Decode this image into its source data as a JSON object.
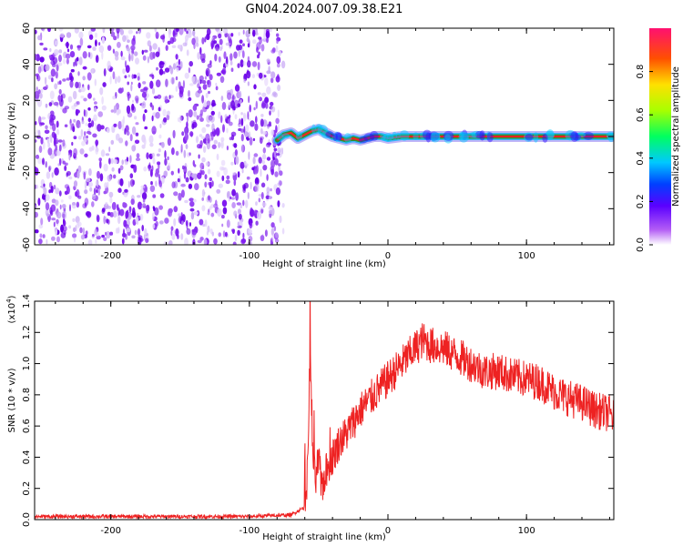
{
  "figure_title": "GN04.2024.007.09.38.E21",
  "colors": {
    "axis": "#000000",
    "background": "#ffffff",
    "snr_line": "#ee2222",
    "trace_center": "#ff2020",
    "trace_band": "#2f8f2f",
    "noise_dark": "#6a00e8",
    "noise_light": "#c8a8f5"
  },
  "chart_data": [
    {
      "type": "heatmap",
      "title": "GN04.2024.007.09.38.E21",
      "xlabel": "Height of straight line (km)",
      "ylabel": "Frequency (Hz)",
      "xlim": [
        -255,
        163
      ],
      "ylim": [
        -60,
        60
      ],
      "xticks": [
        -200,
        -100,
        0,
        100
      ],
      "xtick_labels": [
        "-200",
        "-100",
        "0",
        "100"
      ],
      "yticks": [
        -60,
        -40,
        -20,
        0,
        20,
        40,
        60
      ],
      "ytick_labels": [
        "-60",
        "-40",
        "-20",
        "0",
        "20",
        "40",
        "60"
      ],
      "noise_region_x": [
        -255,
        -78
      ],
      "trace": {
        "x": [
          -80,
          -75,
          -70,
          -65,
          -60,
          -55,
          -50,
          -45,
          -40,
          -35,
          -30,
          -25,
          -20,
          -15,
          -10,
          -5,
          0,
          10,
          20,
          40,
          60,
          80,
          100,
          120,
          140,
          163
        ],
        "y": [
          -2,
          1,
          2,
          -1,
          1,
          3,
          4,
          2,
          0,
          -1,
          -2,
          -1,
          -2,
          -1,
          0,
          0,
          -1,
          0,
          0,
          0,
          0,
          0,
          0,
          0,
          0,
          0
        ]
      },
      "colorbar": {
        "label": "Normalized spectral amplitude",
        "range": [
          0,
          1
        ],
        "ticks": [
          0.0,
          0.2,
          0.4,
          0.6,
          0.8
        ],
        "tick_labels": [
          "0.0",
          "0.2",
          "0.4",
          "0.6",
          "0.8"
        ],
        "colormap": "rainbow-white"
      }
    },
    {
      "type": "line",
      "xlabel": "Height of straight line (km)",
      "ylabel": "SNR (10 * v/v)",
      "y_scale_label": "(x10",
      "y_scale_exponent": "4",
      "y_scale_close": ")",
      "xlim": [
        -255,
        163
      ],
      "ylim": [
        0,
        1.4
      ],
      "xticks": [
        -200,
        -100,
        0,
        100
      ],
      "xtick_labels": [
        "-200",
        "-100",
        "0",
        "100"
      ],
      "yticks": [
        0.0,
        0.2,
        0.4,
        0.6,
        0.8,
        1.0,
        1.2,
        1.4
      ],
      "ytick_labels": [
        "0.0",
        "0.2",
        "0.4",
        "0.6",
        "0.8",
        "1.0",
        "1.2",
        "1.4"
      ],
      "series": [
        {
          "name": "SNR",
          "x": [
            -255,
            -200,
            -150,
            -100,
            -70,
            -60,
            -58,
            -56,
            -55,
            -54,
            -52,
            -50,
            -48,
            -45,
            -40,
            -35,
            -30,
            -20,
            -10,
            0,
            10,
            20,
            25,
            30,
            40,
            50,
            60,
            70,
            80,
            90,
            100,
            110,
            120,
            130,
            140,
            150,
            160,
            163
          ],
          "y": [
            0.02,
            0.02,
            0.02,
            0.02,
            0.03,
            0.08,
            0.3,
            1.2,
            0.5,
            0.35,
            0.25,
            0.4,
            0.2,
            0.3,
            0.4,
            0.5,
            0.55,
            0.7,
            0.8,
            0.9,
            1.0,
            1.1,
            1.15,
            1.12,
            1.1,
            1.05,
            1.0,
            0.95,
            0.95,
            0.92,
            0.9,
            0.88,
            0.82,
            0.78,
            0.75,
            0.7,
            0.68,
            0.65
          ]
        }
      ]
    }
  ]
}
